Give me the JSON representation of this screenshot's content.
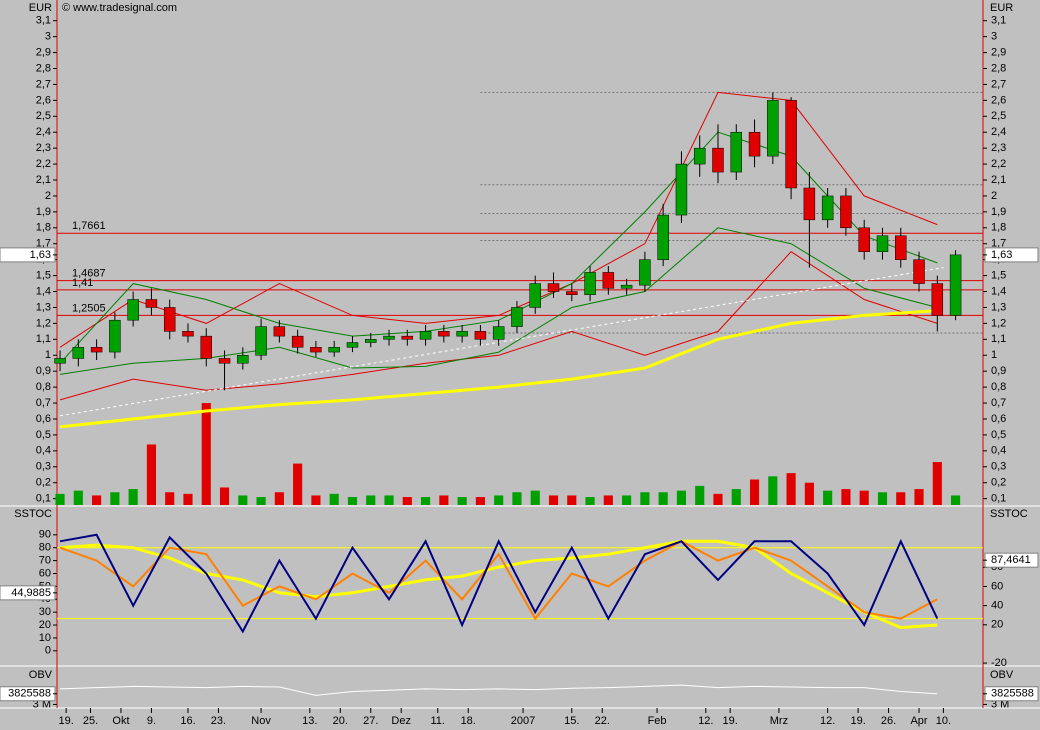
{
  "chart_data": [
    {
      "type": "candlestick",
      "y_label": "EUR",
      "source": "© www.tradesignal.com",
      "x": [
        0,
        3,
        6,
        9,
        12,
        15,
        18,
        21,
        24,
        27,
        30,
        33,
        36,
        39,
        42,
        45,
        48,
        51,
        54,
        57,
        60,
        63,
        66,
        69,
        72,
        75,
        78,
        81,
        84,
        87,
        90,
        93,
        96,
        99,
        102,
        105,
        108,
        111,
        114,
        117,
        120,
        123,
        126,
        129,
        132,
        135,
        138,
        141,
        144,
        147
      ],
      "open": [
        0.95,
        0.98,
        1.05,
        1.02,
        1.22,
        1.35,
        1.3,
        1.15,
        1.12,
        0.98,
        0.95,
        1.0,
        1.18,
        1.12,
        1.05,
        1.02,
        1.05,
        1.08,
        1.1,
        1.12,
        1.1,
        1.15,
        1.12,
        1.15,
        1.1,
        1.18,
        1.3,
        1.45,
        1.4,
        1.38,
        1.52,
        1.42,
        1.44,
        1.6,
        1.88,
        2.2,
        2.3,
        2.15,
        2.4,
        2.25,
        2.6,
        2.05,
        1.85,
        2.0,
        1.8,
        1.65,
        1.75,
        1.6,
        1.45,
        1.25
      ],
      "high": [
        1.03,
        1.1,
        1.1,
        1.27,
        1.4,
        1.42,
        1.35,
        1.2,
        1.17,
        1.03,
        1.05,
        1.23,
        1.22,
        1.16,
        1.09,
        1.09,
        1.12,
        1.14,
        1.16,
        1.16,
        1.19,
        1.19,
        1.19,
        1.19,
        1.22,
        1.34,
        1.5,
        1.52,
        1.45,
        1.56,
        1.56,
        1.48,
        1.65,
        1.95,
        2.28,
        2.38,
        2.45,
        2.45,
        2.48,
        2.65,
        2.62,
        2.15,
        2.05,
        2.05,
        1.85,
        1.8,
        1.8,
        1.65,
        1.5,
        1.66
      ],
      "low": [
        0.9,
        0.93,
        0.97,
        0.98,
        1.18,
        1.25,
        1.1,
        1.08,
        0.93,
        0.78,
        0.91,
        0.97,
        1.08,
        1.01,
        0.99,
        0.99,
        1.02,
        1.05,
        1.06,
        1.06,
        1.06,
        1.08,
        1.08,
        1.06,
        1.06,
        1.14,
        1.26,
        1.36,
        1.34,
        1.34,
        1.38,
        1.38,
        1.4,
        1.56,
        1.83,
        2.12,
        2.08,
        2.1,
        2.18,
        2.2,
        1.98,
        1.55,
        1.8,
        1.75,
        1.6,
        1.6,
        1.55,
        1.4,
        1.15,
        1.22
      ],
      "close": [
        0.98,
        1.05,
        1.02,
        1.22,
        1.35,
        1.3,
        1.15,
        1.12,
        0.98,
        0.95,
        1.0,
        1.18,
        1.12,
        1.05,
        1.02,
        1.05,
        1.08,
        1.1,
        1.12,
        1.1,
        1.15,
        1.12,
        1.15,
        1.1,
        1.18,
        1.3,
        1.45,
        1.4,
        1.38,
        1.52,
        1.42,
        1.44,
        1.6,
        1.88,
        2.2,
        2.3,
        2.15,
        2.4,
        2.25,
        2.6,
        2.05,
        1.85,
        2.0,
        1.8,
        1.65,
        1.75,
        1.6,
        1.45,
        1.25,
        1.63
      ],
      "volume": [
        0.13,
        0.15,
        0.12,
        0.14,
        0.16,
        0.44,
        0.14,
        0.13,
        0.7,
        0.17,
        0.12,
        0.11,
        0.14,
        0.32,
        0.12,
        0.13,
        0.11,
        0.12,
        0.12,
        0.11,
        0.11,
        0.12,
        0.11,
        0.11,
        0.12,
        0.14,
        0.15,
        0.12,
        0.12,
        0.11,
        0.12,
        0.12,
        0.14,
        0.14,
        0.15,
        0.18,
        0.13,
        0.16,
        0.22,
        0.24,
        0.26,
        0.2,
        0.15,
        0.16,
        0.15,
        0.14,
        0.14,
        0.16,
        0.33,
        0.12
      ],
      "up_color": "#00a000",
      "down_color": "#e00000",
      "xlim": [
        -0.5,
        151.5
      ],
      "xticks": [
        {
          "value": 1,
          "label": "19."
        },
        {
          "value": 5,
          "label": "25."
        },
        {
          "value": 10,
          "label": "Okt"
        },
        {
          "value": 15,
          "label": "9."
        },
        {
          "value": 21,
          "label": "16."
        },
        {
          "value": 26,
          "label": "23."
        },
        {
          "value": 33,
          "label": "Nov"
        },
        {
          "value": 41,
          "label": "13."
        },
        {
          "value": 46,
          "label": "20."
        },
        {
          "value": 51,
          "label": "27."
        },
        {
          "value": 56,
          "label": "Dez"
        },
        {
          "value": 62,
          "label": "11."
        },
        {
          "value": 67,
          "label": "18."
        },
        {
          "value": 76,
          "label": "2007"
        },
        {
          "value": 84,
          "label": "15."
        },
        {
          "value": 89,
          "label": "22."
        },
        {
          "value": 98,
          "label": "Feb"
        },
        {
          "value": 106,
          "label": "12."
        },
        {
          "value": 110,
          "label": "19."
        },
        {
          "value": 118,
          "label": "Mrz"
        },
        {
          "value": 126,
          "label": "12."
        },
        {
          "value": 131,
          "label": "19."
        },
        {
          "value": 136,
          "label": "26."
        },
        {
          "value": 141,
          "label": "Apr"
        },
        {
          "value": 145,
          "label": "10."
        }
      ],
      "ylim": [
        0.06,
        3.23
      ],
      "yticks": [
        {
          "value": 0.1,
          "label": "0,1"
        },
        {
          "value": 0.2,
          "label": "0,2"
        },
        {
          "value": 0.3,
          "label": "0,3"
        },
        {
          "value": 0.4,
          "label": "0,4"
        },
        {
          "value": 0.5,
          "label": "0,5"
        },
        {
          "value": 0.6,
          "label": "0,6"
        },
        {
          "value": 0.7,
          "label": "0,7"
        },
        {
          "value": 0.8,
          "label": "0,8"
        },
        {
          "value": 0.9,
          "label": "0,9"
        },
        1,
        {
          "value": 1.1,
          "label": "1,1"
        },
        {
          "value": 1.2,
          "label": "1,2"
        },
        {
          "value": 1.3,
          "label": "1,3"
        },
        {
          "value": 1.4,
          "label": "1,4"
        },
        {
          "value": 1.5,
          "label": "1,5"
        },
        {
          "value": 1.6,
          "label": "1,6"
        },
        {
          "value": 1.7,
          "label": "1,7"
        },
        {
          "value": 1.8,
          "label": "1,8"
        },
        {
          "value": 1.9,
          "label": "1,9"
        },
        2,
        {
          "value": 2.1,
          "label": "2,1"
        },
        {
          "value": 2.2,
          "label": "2,2"
        },
        {
          "value": 2.3,
          "label": "2,3"
        },
        {
          "value": 2.4,
          "label": "2,4"
        },
        {
          "value": 2.5,
          "label": "2,5"
        },
        {
          "value": 2.6,
          "label": "2,6"
        },
        {
          "value": 2.7,
          "label": "2,7"
        },
        {
          "value": 2.8,
          "label": "2,8"
        },
        {
          "value": 2.9,
          "label": "2,9"
        },
        3,
        {
          "value": 3.1,
          "label": "3,1"
        }
      ],
      "last": {
        "value": 1.63,
        "label": "1,63"
      },
      "levels": [
        {
          "value": 1.7661,
          "label": "1,7661"
        },
        {
          "value": 1.4687,
          "label": "1,4687"
        },
        {
          "value": 1.41,
          "label": "1,41"
        },
        {
          "value": 1.2505,
          "label": "1,2505"
        }
      ],
      "level_color": "#e00000",
      "gray_levels": [
        2.65,
        2.07,
        1.89,
        1.72,
        1.14
      ],
      "gray_from": 69,
      "lines": [
        {
          "color": "#e00000",
          "x": [
            0,
            12,
            24,
            36,
            48,
            60,
            72,
            84,
            96,
            108,
            120,
            132,
            144
          ],
          "values": [
            1.05,
            1.35,
            1.2,
            1.45,
            1.25,
            1.2,
            1.25,
            1.45,
            1.7,
            2.65,
            2.6,
            2.0,
            1.82
          ]
        },
        {
          "color": "#e00000",
          "x": [
            0,
            12,
            24,
            36,
            48,
            60,
            72,
            84,
            96,
            108,
            120,
            132,
            144
          ],
          "values": [
            0.72,
            0.85,
            0.78,
            0.82,
            0.88,
            0.95,
            1.0,
            1.15,
            1.0,
            1.15,
            1.65,
            1.35,
            1.2
          ]
        },
        {
          "color": "#008000",
          "x": [
            0,
            12,
            24,
            36,
            48,
            60,
            72,
            84,
            96,
            108,
            120,
            132,
            144
          ],
          "values": [
            0.95,
            1.45,
            1.35,
            1.2,
            1.12,
            1.15,
            1.22,
            1.45,
            1.9,
            2.4,
            2.25,
            1.75,
            1.58
          ]
        },
        {
          "color": "#008000",
          "x": [
            0,
            12,
            24,
            36,
            48,
            60,
            72,
            84,
            96,
            108,
            120,
            132,
            144
          ],
          "values": [
            0.88,
            0.95,
            0.98,
            1.05,
            0.92,
            0.93,
            1.02,
            1.3,
            1.4,
            1.8,
            1.7,
            1.42,
            1.3
          ]
        },
        {
          "color": "#ffff00",
          "x": [
            0,
            12,
            24,
            36,
            48,
            60,
            72,
            84,
            96,
            108,
            120,
            132,
            144
          ],
          "values": [
            0.55,
            0.6,
            0.65,
            0.69,
            0.72,
            0.76,
            0.8,
            0.85,
            0.92,
            1.1,
            1.2,
            1.25,
            1.28
          ]
        },
        {
          "color": "#ffffff",
          "x": [
            0,
            145
          ],
          "values": [
            0.62,
            1.55
          ]
        }
      ]
    },
    {
      "type": "line",
      "y_label": "SSTOC",
      "x": [
        0,
        6,
        12,
        18,
        24,
        30,
        36,
        42,
        48,
        54,
        60,
        66,
        72,
        78,
        84,
        90,
        96,
        102,
        108,
        114,
        120,
        126,
        132,
        138,
        144
      ],
      "xlim": [
        -0.5,
        151.5
      ],
      "series": [
        {
          "color": "#ffff00",
          "values": [
            80,
            82,
            80,
            72,
            60,
            55,
            45,
            42,
            45,
            50,
            55,
            58,
            65,
            70,
            72,
            75,
            80,
            85,
            85,
            80,
            60,
            45,
            30,
            18,
            20
          ]
        },
        {
          "color": "#ff8000",
          "values": [
            80,
            70,
            50,
            80,
            75,
            35,
            50,
            40,
            60,
            45,
            70,
            40,
            75,
            25,
            60,
            50,
            70,
            85,
            70,
            80,
            70,
            50,
            30,
            25,
            40
          ]
        },
        {
          "color": "#000080",
          "values": [
            85,
            90,
            35,
            88,
            60,
            15,
            70,
            25,
            80,
            40,
            85,
            20,
            85,
            30,
            80,
            25,
            75,
            85,
            55,
            85,
            85,
            60,
            20,
            85,
            25
          ]
        }
      ],
      "ylim": [
        -11,
        111.6
      ],
      "yticks": [
        0,
        10,
        20,
        30,
        40,
        50,
        60,
        70,
        80,
        90
      ],
      "y2lim": [
        -22,
        143
      ],
      "y2ticks": [
        -20,
        20,
        40,
        60,
        80
      ],
      "levels": [
        80,
        25
      ],
      "level_color": "#ffff00",
      "last": {
        "value": 44.9885,
        "label": "44,9885"
      },
      "last2": {
        "value": 87.4641,
        "label": "87,4641"
      }
    },
    {
      "type": "line",
      "y_label": "OBV",
      "x": [
        0,
        6,
        12,
        18,
        24,
        30,
        36,
        42,
        48,
        54,
        60,
        66,
        72,
        78,
        84,
        90,
        96,
        102,
        108,
        114,
        120,
        126,
        132,
        138,
        144
      ],
      "xlim": [
        -0.5,
        151.5
      ],
      "values": [
        4200000,
        4300000,
        4400000,
        4350000,
        4300000,
        4400000,
        4350000,
        3700000,
        4000000,
        4100000,
        4200000,
        4150000,
        4200000,
        4150000,
        4250000,
        4300000,
        4400000,
        4500000,
        4300000,
        4400000,
        4350000,
        4300000,
        4300000,
        4000000,
        3825588
      ],
      "color": "#ffffff",
      "ylim": [
        2800000,
        5900000
      ],
      "yticks": [
        {
          "value": 3000000,
          "label": "3 M"
        }
      ],
      "last": {
        "value": 3825588,
        "label": "3825588"
      }
    }
  ]
}
